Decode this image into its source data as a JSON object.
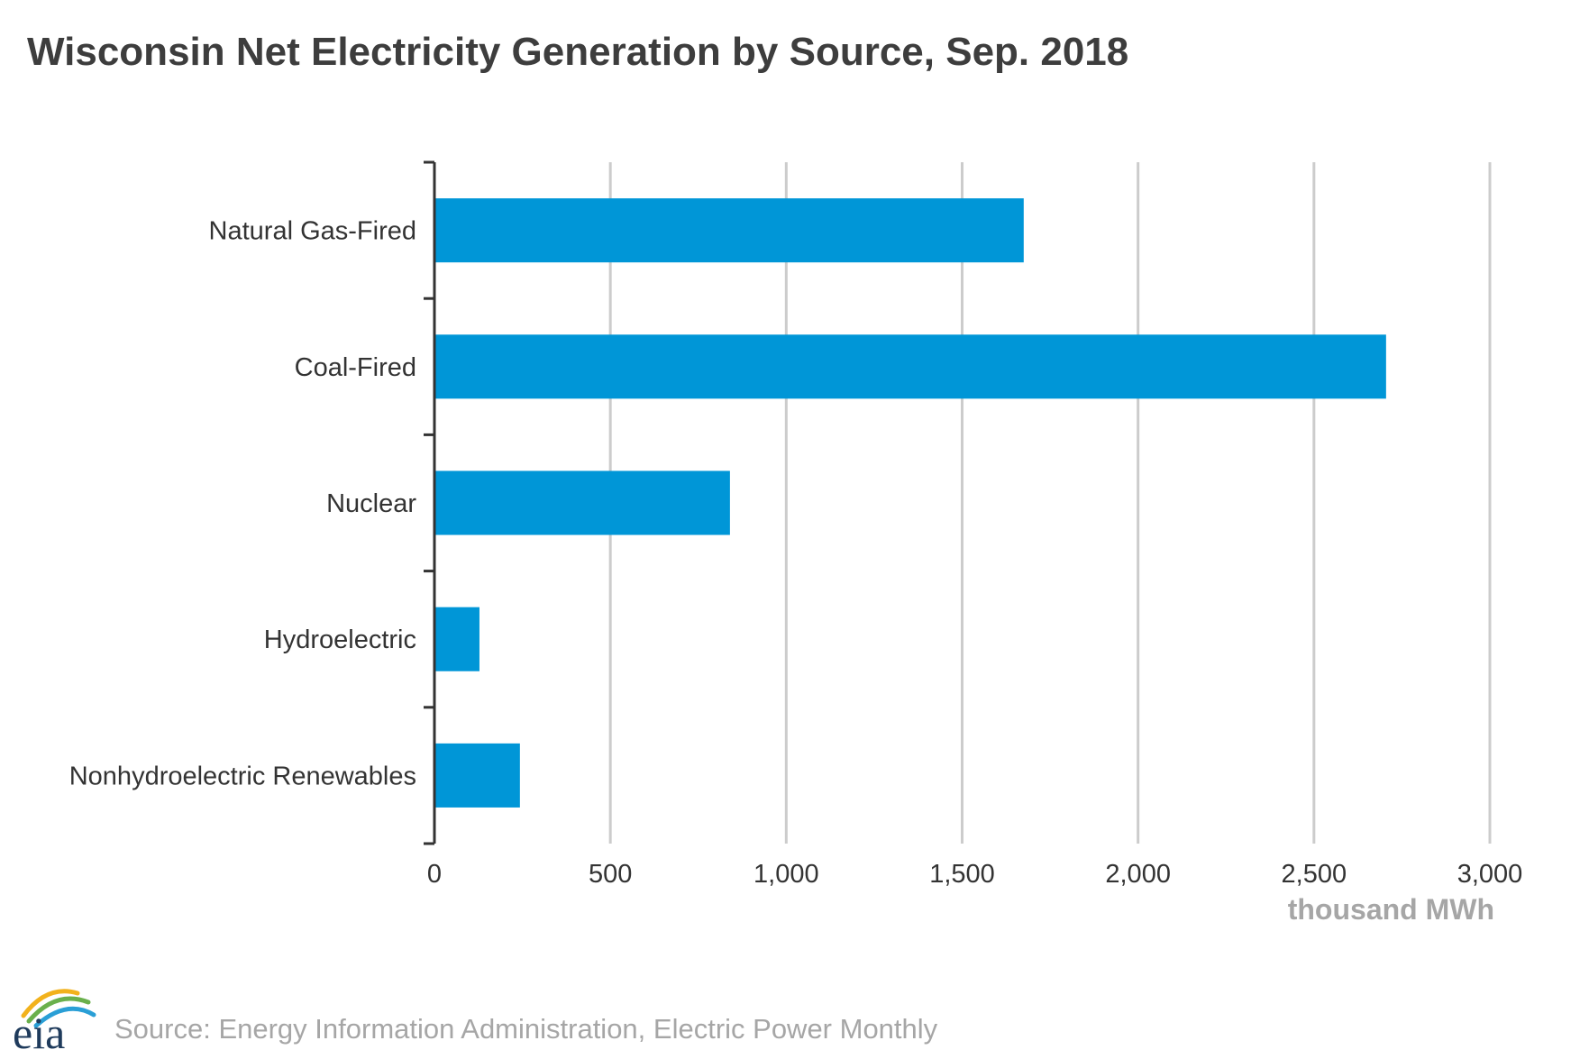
{
  "chart_data": {
    "type": "bar",
    "orientation": "horizontal",
    "title": "Wisconsin Net Electricity Generation by Source, Sep. 2018",
    "categories": [
      "Natural Gas-Fired",
      "Coal-Fired",
      "Nuclear",
      "Hydroelectric",
      "Nonhydroelectric Renewables"
    ],
    "values": [
      1675,
      2705,
      840,
      128,
      243
    ],
    "xlabel": "thousand MWh",
    "ylabel": "",
    "xlim": [
      0,
      3000
    ],
    "ticks": [
      0,
      500,
      1000,
      1500,
      2000,
      2500,
      3000
    ],
    "tick_labels": [
      "0",
      "500",
      "1,000",
      "1,500",
      "2,000",
      "2,500",
      "3,000"
    ],
    "grid": true,
    "bar_color": "#0096d7",
    "grid_color": "#cccccc",
    "axis_color": "#333333"
  },
  "footer": {
    "logo_text": "eia",
    "source": "Source: Energy Information Administration, Electric Power Monthly"
  }
}
